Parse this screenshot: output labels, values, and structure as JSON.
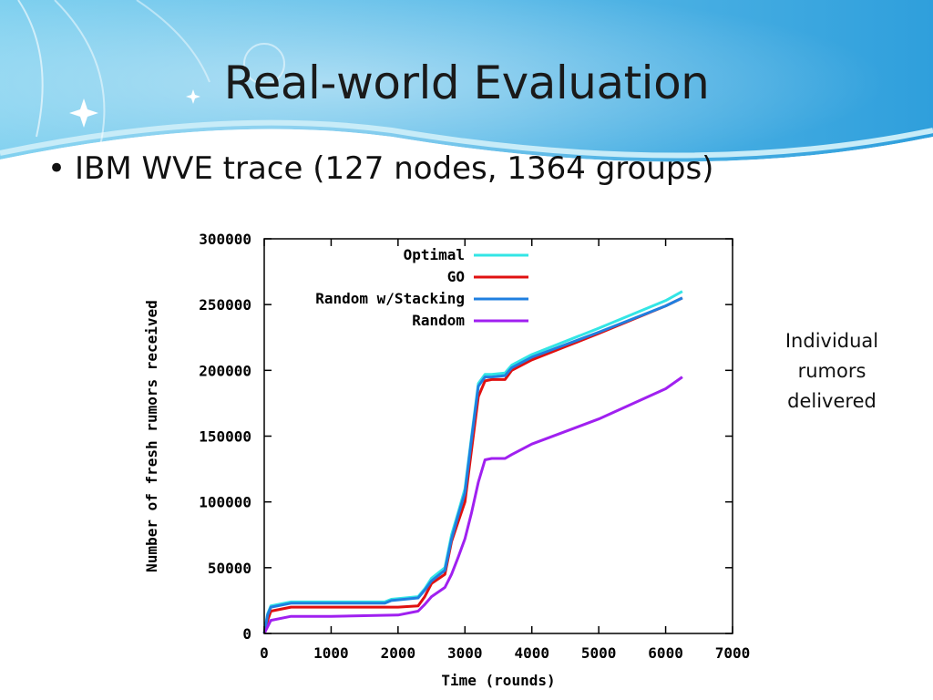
{
  "slide": {
    "title": "Real-world Evaluation",
    "bullet": "IBM WVE trace (127 nodes, 1364 groups)",
    "bullet_marker": "•",
    "side_note": [
      "Individual",
      "rumors",
      "delivered"
    ]
  },
  "colors": {
    "optimal": "#33e5e5",
    "go": "#e01010",
    "stacking": "#1f7fe0",
    "random": "#a020f0",
    "header_blue": "#3aa6df"
  },
  "chart_data": {
    "type": "line",
    "xlabel": "Time (rounds)",
    "ylabel": "Number of fresh rumors received",
    "xlim": [
      0,
      7000
    ],
    "ylim": [
      0,
      300000
    ],
    "x_ticks": [
      "0",
      "1000",
      "2000",
      "3000",
      "4000",
      "5000",
      "6000",
      "7000"
    ],
    "x_tick_values": [
      0,
      1000,
      2000,
      3000,
      4000,
      5000,
      6000,
      7000
    ],
    "y_ticks": [
      "0",
      "50000",
      "100000",
      "150000",
      "200000",
      "250000",
      "300000"
    ],
    "y_tick_values": [
      0,
      50000,
      100000,
      150000,
      200000,
      250000,
      300000
    ],
    "legend_position": "top-left",
    "series": [
      {
        "name": "Optimal",
        "color": "#33e5e5",
        "x": [
          0,
          50,
          100,
          400,
          1000,
          1800,
          1900,
          2300,
          2400,
          2500,
          2700,
          2800,
          2900,
          3000,
          3100,
          3200,
          3300,
          3400,
          3600,
          3700,
          4000,
          5000,
          6000,
          6250
        ],
        "y": [
          0,
          15000,
          21000,
          24000,
          24000,
          24000,
          26000,
          28000,
          34000,
          42000,
          50000,
          75000,
          92000,
          110000,
          150000,
          190000,
          197000,
          197000,
          198000,
          204000,
          212000,
          232000,
          253000,
          260000
        ]
      },
      {
        "name": "GO",
        "color": "#e01010",
        "x": [
          0,
          50,
          100,
          400,
          1000,
          2000,
          2300,
          2400,
          2500,
          2700,
          2800,
          2900,
          3000,
          3100,
          3200,
          3300,
          3400,
          3600,
          3700,
          4000,
          5000,
          6000,
          6250
        ],
        "y": [
          0,
          10000,
          17000,
          20000,
          20000,
          20000,
          21000,
          28000,
          38000,
          45000,
          70000,
          85000,
          100000,
          140000,
          180000,
          192000,
          193000,
          193000,
          200000,
          208000,
          228000,
          249000,
          255000
        ]
      },
      {
        "name": "Random w/Stacking",
        "color": "#1f7fe0",
        "x": [
          0,
          50,
          100,
          400,
          1000,
          1800,
          1900,
          2300,
          2400,
          2500,
          2700,
          2800,
          2900,
          3000,
          3100,
          3200,
          3300,
          3400,
          3600,
          3700,
          4000,
          5000,
          6000,
          6250
        ],
        "y": [
          0,
          14000,
          20000,
          23000,
          23000,
          23000,
          25000,
          27000,
          33000,
          40000,
          48000,
          72000,
          90000,
          107000,
          148000,
          188000,
          195000,
          195000,
          196000,
          202000,
          210000,
          229000,
          249000,
          255000
        ]
      },
      {
        "name": "Random",
        "color": "#a020f0",
        "x": [
          0,
          100,
          400,
          1000,
          2000,
          2300,
          2400,
          2500,
          2700,
          2800,
          2900,
          3000,
          3100,
          3200,
          3300,
          3400,
          3600,
          3700,
          4000,
          5000,
          6000,
          6250
        ],
        "y": [
          0,
          10000,
          13000,
          13000,
          14000,
          17000,
          22000,
          28000,
          35000,
          45000,
          58000,
          72000,
          92000,
          115000,
          132000,
          133000,
          133000,
          136000,
          144000,
          163000,
          186000,
          195000
        ]
      }
    ]
  }
}
